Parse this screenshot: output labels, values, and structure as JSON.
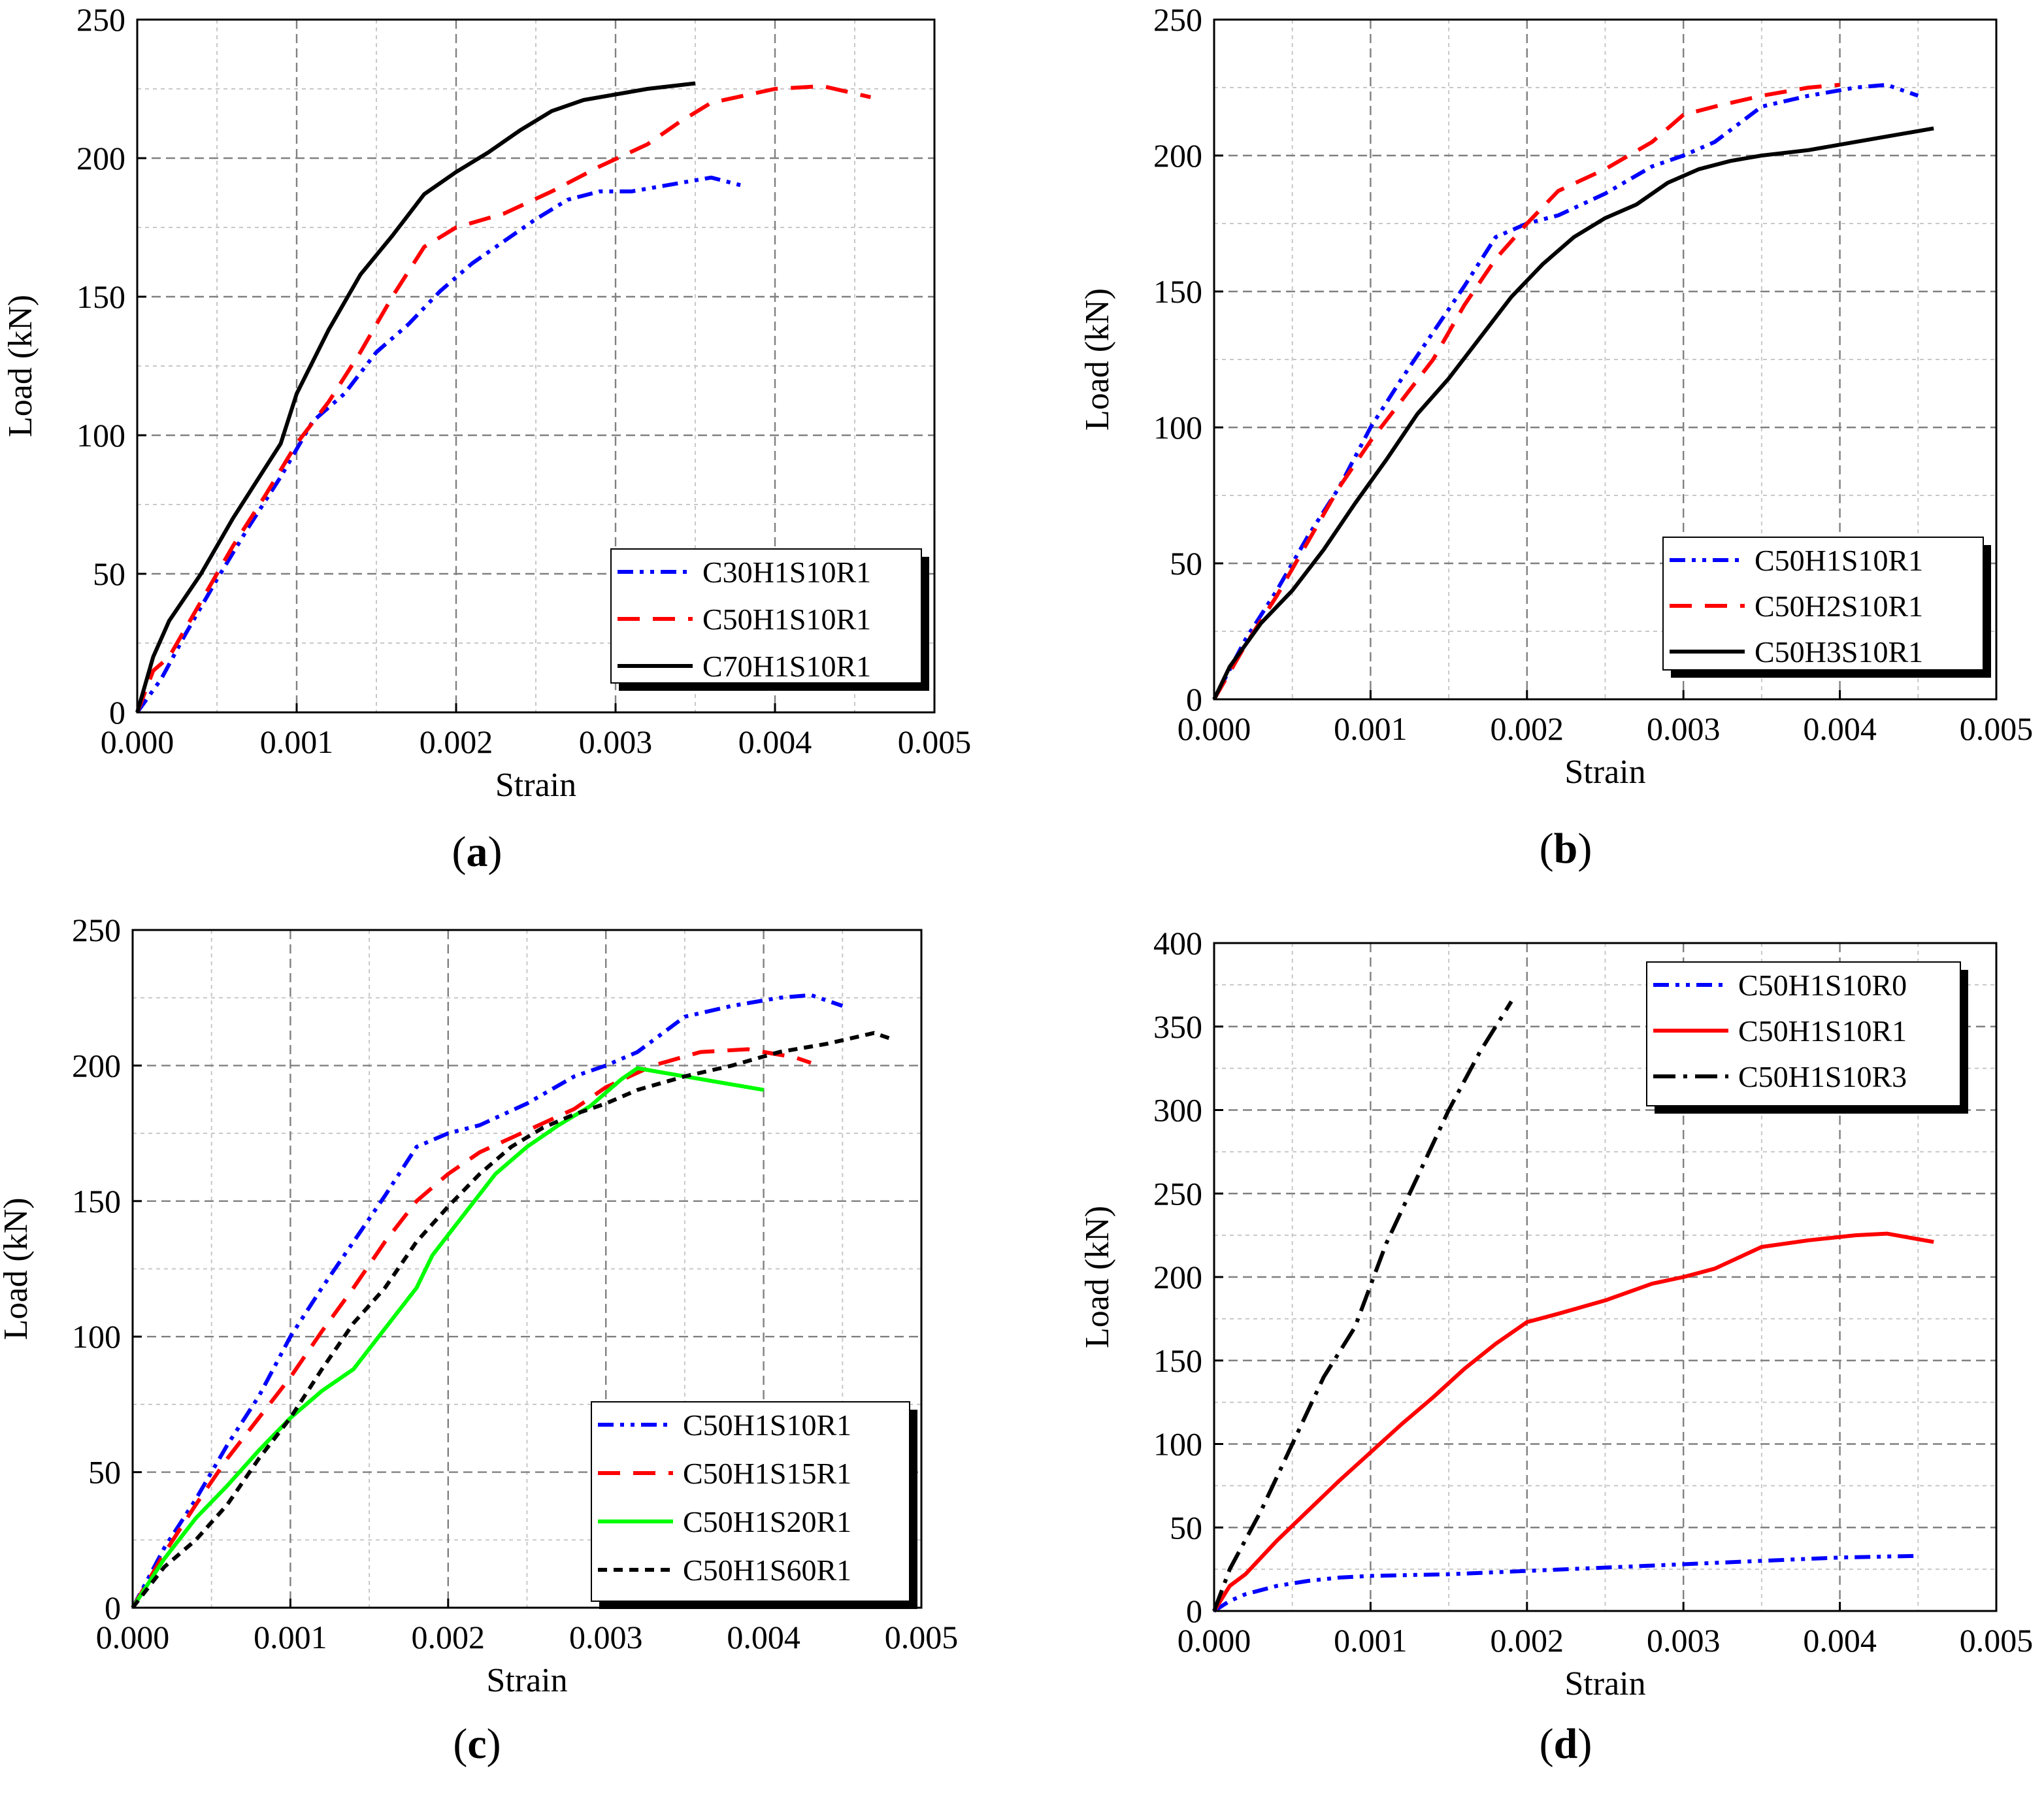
{
  "chart_data": [
    {
      "type": "line",
      "panel": "a",
      "caption": {
        "open": "(",
        "letter": "a",
        "close": ")"
      },
      "xlabel": "Strain",
      "ylabel": "Load (kN)",
      "xlim": [
        0,
        0.005
      ],
      "ylim": [
        0,
        250
      ],
      "xticks": [
        "0.000",
        "0.001",
        "0.002",
        "0.003",
        "0.004",
        "0.005"
      ],
      "yticks": [
        "0",
        "50",
        "100",
        "150",
        "200",
        "250"
      ],
      "grid": true,
      "legend_position": "bottom-right",
      "series": [
        {
          "name": "C30H1S10R1",
          "color": "#0000ff",
          "dash": "dashdotdot",
          "x": [
            0,
            0.00015,
            0.0003,
            0.0005,
            0.0007,
            0.0009,
            0.0011,
            0.0013,
            0.0015,
            0.0017,
            0.0019,
            0.0021,
            0.0025,
            0.0027,
            0.0029,
            0.0031,
            0.0033,
            0.0035,
            0.0036,
            0.0038
          ],
          "y": [
            0,
            12,
            28,
            48,
            67,
            85,
            105,
            115,
            130,
            140,
            152,
            162,
            178,
            185,
            188,
            188,
            190,
            192,
            193,
            190
          ]
        },
        {
          "name": "C50H1S10R1",
          "color": "#ff0000",
          "dash": "dash",
          "x": [
            0,
            0.0001,
            0.0002,
            0.0004,
            0.0006,
            0.0008,
            0.001,
            0.0012,
            0.0014,
            0.0016,
            0.0018,
            0.002,
            0.0023,
            0.0026,
            0.0029,
            0.0032,
            0.0034,
            0.0036,
            0.004,
            0.0043,
            0.0046
          ],
          "y": [
            0,
            15,
            20,
            40,
            60,
            78,
            97,
            112,
            130,
            150,
            168,
            175,
            180,
            188,
            197,
            205,
            213,
            220,
            225,
            226,
            222
          ]
        },
        {
          "name": "C70H1S10R1",
          "color": "#000000",
          "dash": "solid",
          "x": [
            0,
            0.0001,
            0.0002,
            0.0004,
            0.0006,
            0.0008,
            0.0009,
            0.001,
            0.0012,
            0.0014,
            0.0016,
            0.0018,
            0.002,
            0.0022,
            0.0024,
            0.0026,
            0.0028,
            0.003,
            0.0032,
            0.0035
          ],
          "y": [
            0,
            20,
            33,
            50,
            70,
            88,
            97,
            115,
            138,
            158,
            172,
            187,
            195,
            202,
            210,
            217,
            221,
            223,
            225,
            227
          ]
        }
      ]
    },
    {
      "type": "line",
      "panel": "b",
      "caption": {
        "open": "(",
        "letter": "b",
        "close": ")"
      },
      "xlabel": "Strain",
      "ylabel": "Load (kN)",
      "xlim": [
        0,
        0.005
      ],
      "ylim": [
        0,
        250
      ],
      "xticks": [
        "0.000",
        "0.001",
        "0.002",
        "0.003",
        "0.004",
        "0.005"
      ],
      "yticks": [
        "0",
        "50",
        "100",
        "150",
        "200",
        "250"
      ],
      "grid": true,
      "legend_position": "bottom-right",
      "series": [
        {
          "name": "C50H1S10R1",
          "color": "#0000ff",
          "dash": "dashdotdot",
          "x": [
            0,
            0.0002,
            0.0004,
            0.0006,
            0.0008,
            0.001,
            0.0012,
            0.0014,
            0.0016,
            0.0018,
            0.002,
            0.0022,
            0.0025,
            0.0028,
            0.003,
            0.0032,
            0.0035,
            0.0038,
            0.0041,
            0.0043,
            0.0045
          ],
          "y": [
            0,
            22,
            40,
            60,
            78,
            100,
            118,
            135,
            152,
            170,
            175,
            178,
            186,
            196,
            200,
            205,
            218,
            222,
            225,
            226,
            222
          ]
        },
        {
          "name": "C50H2S10R1",
          "color": "#ff0000",
          "dash": "dash",
          "x": [
            0,
            0.0002,
            0.0004,
            0.0006,
            0.0008,
            0.001,
            0.0012,
            0.0014,
            0.0016,
            0.0018,
            0.002,
            0.0022,
            0.0025,
            0.0028,
            0.003,
            0.0032,
            0.0035,
            0.0038,
            0.004
          ],
          "y": [
            0,
            20,
            38,
            58,
            78,
            95,
            110,
            125,
            145,
            162,
            175,
            187,
            195,
            205,
            215,
            218,
            222,
            225,
            226
          ]
        },
        {
          "name": "C50H3S10R1",
          "color": "#000000",
          "dash": "solid",
          "x": [
            0,
            0.0001,
            0.0003,
            0.0005,
            0.0007,
            0.0009,
            0.0011,
            0.0013,
            0.0015,
            0.0017,
            0.0019,
            0.0021,
            0.0023,
            0.0025,
            0.0027,
            0.0029,
            0.0031,
            0.0033,
            0.0035,
            0.0038,
            0.0041,
            0.0044,
            0.0046
          ],
          "y": [
            0,
            12,
            28,
            40,
            55,
            72,
            88,
            105,
            118,
            133,
            148,
            160,
            170,
            177,
            182,
            190,
            195,
            198,
            200,
            202,
            205,
            208,
            210
          ]
        }
      ]
    },
    {
      "type": "line",
      "panel": "c",
      "caption": {
        "open": "(",
        "letter": "c",
        "close": ")"
      },
      "xlabel": "Strain",
      "ylabel": "Load (kN)",
      "xlim": [
        0,
        0.005
      ],
      "ylim": [
        0,
        250
      ],
      "xticks": [
        "0.000",
        "0.001",
        "0.002",
        "0.003",
        "0.004",
        "0.005"
      ],
      "yticks": [
        "0",
        "50",
        "100",
        "150",
        "200",
        "250"
      ],
      "grid": true,
      "legend_position": "bottom-right",
      "series": [
        {
          "name": "C50H1S10R1",
          "color": "#0000ff",
          "dash": "dashdotdot",
          "x": [
            0,
            0.0002,
            0.0004,
            0.0006,
            0.0008,
            0.001,
            0.0012,
            0.0014,
            0.0016,
            0.0018,
            0.002,
            0.0022,
            0.0025,
            0.0028,
            0.003,
            0.0032,
            0.0035,
            0.0038,
            0.0041,
            0.0043,
            0.0045
          ],
          "y": [
            0,
            22,
            40,
            60,
            78,
            100,
            118,
            135,
            152,
            170,
            175,
            178,
            186,
            196,
            200,
            205,
            218,
            222,
            225,
            226,
            222
          ]
        },
        {
          "name": "C50H1S15R1",
          "color": "#ff0000",
          "dash": "dash",
          "x": [
            0,
            0.0002,
            0.0004,
            0.0006,
            0.0008,
            0.001,
            0.0012,
            0.0014,
            0.0016,
            0.0018,
            0.002,
            0.0022,
            0.0025,
            0.0028,
            0.003,
            0.0033,
            0.0036,
            0.0039,
            0.0042,
            0.0043
          ],
          "y": [
            0,
            20,
            38,
            55,
            70,
            85,
            102,
            118,
            135,
            150,
            160,
            168,
            176,
            184,
            192,
            200,
            205,
            206,
            203,
            201
          ]
        },
        {
          "name": "C50H1S20R1",
          "color": "#00ff00",
          "dash": "solid",
          "x": [
            0,
            0.0002,
            0.0004,
            0.0006,
            0.0008,
            0.001,
            0.0012,
            0.0014,
            0.0016,
            0.0018,
            0.0019,
            0.0021,
            0.0023,
            0.0025,
            0.0027,
            0.0029,
            0.003,
            0.0031,
            0.0032,
            0.0035,
            0.0038,
            0.004
          ],
          "y": [
            0,
            18,
            33,
            45,
            58,
            70,
            80,
            88,
            103,
            118,
            130,
            145,
            160,
            170,
            178,
            185,
            190,
            195,
            199,
            196,
            193,
            191
          ]
        },
        {
          "name": "C50H1S60R1",
          "color": "#000000",
          "dash": "shortdash",
          "x": [
            0,
            0.0002,
            0.0004,
            0.0006,
            0.0008,
            0.001,
            0.0012,
            0.0014,
            0.0016,
            0.0018,
            0.002,
            0.0022,
            0.0024,
            0.0026,
            0.0028,
            0.003,
            0.0032,
            0.0035,
            0.0038,
            0.0041,
            0.0044,
            0.0047,
            0.0048
          ],
          "y": [
            0,
            15,
            25,
            38,
            55,
            70,
            88,
            105,
            118,
            135,
            148,
            160,
            170,
            177,
            182,
            186,
            191,
            196,
            200,
            205,
            208,
            212,
            210
          ]
        }
      ]
    },
    {
      "type": "line",
      "panel": "d",
      "caption": {
        "open": "(",
        "letter": "d",
        "close": ")"
      },
      "xlabel": "Strain",
      "ylabel": "Load (kN)",
      "xlim": [
        0,
        0.005
      ],
      "ylim": [
        0,
        400
      ],
      "xticks": [
        "0.000",
        "0.001",
        "0.002",
        "0.003",
        "0.004",
        "0.005"
      ],
      "yticks": [
        "0",
        "50",
        "100",
        "150",
        "200",
        "250",
        "300",
        "350",
        "400"
      ],
      "grid": true,
      "legend_position": "top-right",
      "series": [
        {
          "name": "C50H1S10R0",
          "color": "#0000ff",
          "dash": "dashdotdot",
          "x": [
            0,
            0.0001,
            0.0002,
            0.0004,
            0.0006,
            0.0008,
            0.001,
            0.0015,
            0.002,
            0.0025,
            0.003,
            0.0035,
            0.004,
            0.0045
          ],
          "y": [
            0,
            6,
            10,
            15,
            18,
            20,
            21,
            22,
            24,
            26,
            28,
            30,
            32,
            33
          ]
        },
        {
          "name": "C50H1S10R1",
          "color": "#ff0000",
          "dash": "solid",
          "x": [
            0,
            0.0001,
            0.0002,
            0.0004,
            0.0006,
            0.0008,
            0.001,
            0.0012,
            0.0014,
            0.0016,
            0.0018,
            0.002,
            0.0022,
            0.0025,
            0.0028,
            0.003,
            0.0032,
            0.0035,
            0.0038,
            0.0041,
            0.0043,
            0.0046
          ],
          "y": [
            0,
            15,
            22,
            42,
            60,
            78,
            95,
            112,
            128,
            145,
            160,
            173,
            178,
            186,
            196,
            200,
            205,
            218,
            222,
            225,
            226,
            221
          ]
        },
        {
          "name": "C50H1S10R3",
          "color": "#000000",
          "dash": "dashdot",
          "x": [
            0,
            0.0001,
            0.0003,
            0.0005,
            0.0007,
            0.0009,
            0.0011,
            0.0013,
            0.0015,
            0.0017,
            0.0019
          ],
          "y": [
            0,
            25,
            60,
            100,
            140,
            170,
            220,
            260,
            300,
            335,
            365
          ]
        }
      ]
    }
  ]
}
